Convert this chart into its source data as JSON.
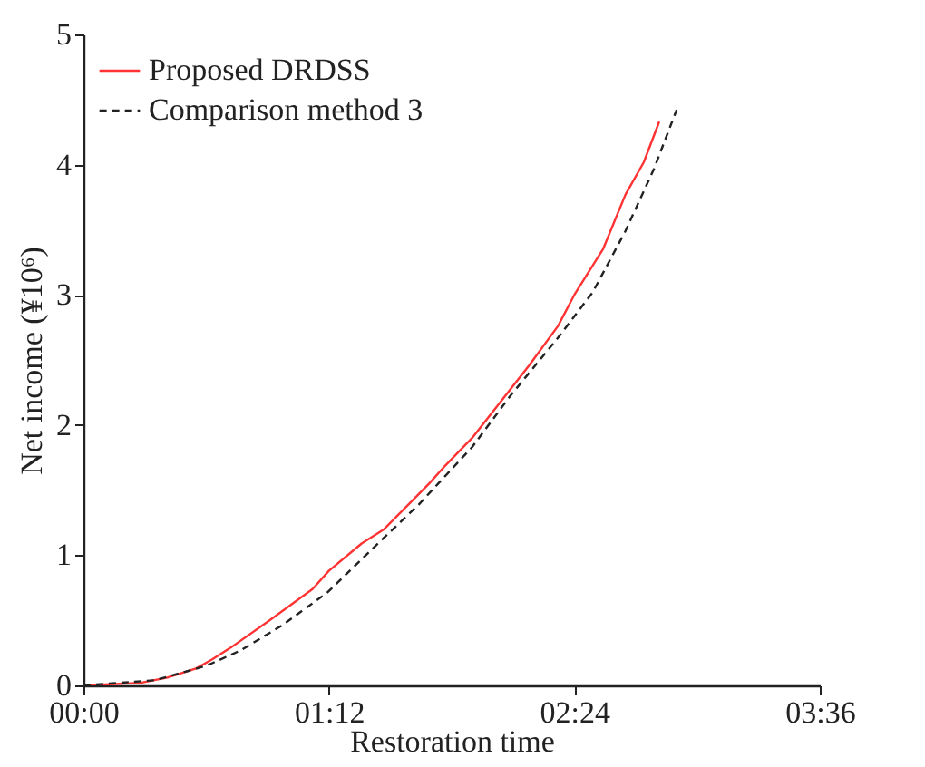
{
  "chart_data": {
    "type": "line",
    "xlabel": "Restoration time",
    "ylabel": "Net income (¥10⁶)",
    "xlim": [
      0,
      3.6
    ],
    "xticks": [
      {
        "value": 0,
        "label": "00:00"
      },
      {
        "value": 1.2,
        "label": "01:12"
      },
      {
        "value": 2.4,
        "label": "02:24"
      },
      {
        "value": 3.6,
        "label": "03:36"
      }
    ],
    "ylim": [
      0,
      5
    ],
    "yticks": [
      0,
      1,
      2,
      3,
      4,
      5
    ],
    "grid": false,
    "legend": "top left",
    "marker": "none",
    "series": [
      {
        "name": "Proposed DRDSS",
        "color": "#ff3333",
        "line_style": "solid",
        "x": [
          0,
          0.155,
          0.28,
          0.41,
          0.55,
          0.63,
          0.72,
          0.91,
          1.12,
          1.2,
          1.36,
          1.47,
          1.69,
          1.77,
          1.9,
          2.04,
          2.18,
          2.32,
          2.4,
          2.54,
          2.65,
          2.74,
          2.815
        ],
        "values": [
          0,
          0.01,
          0.02,
          0.06,
          0.13,
          0.2,
          0.29,
          0.5,
          0.74,
          0.88,
          1.09,
          1.2,
          1.55,
          1.69,
          1.9,
          2.18,
          2.46,
          2.76,
          3.0,
          3.35,
          3.77,
          4.02,
          4.33
        ]
      },
      {
        "name": "Comparison method 3",
        "color": "#222222",
        "line_style": "dashed",
        "x": [
          0,
          0.35,
          0.6,
          0.77,
          0.97,
          1.19,
          1.42,
          1.64,
          1.9,
          2.09,
          2.32,
          2.49,
          2.65,
          2.79,
          2.9
        ],
        "values": [
          0,
          0.04,
          0.15,
          0.27,
          0.46,
          0.71,
          1.06,
          1.39,
          1.83,
          2.23,
          2.67,
          3.02,
          3.49,
          3.97,
          4.42
        ]
      }
    ]
  }
}
